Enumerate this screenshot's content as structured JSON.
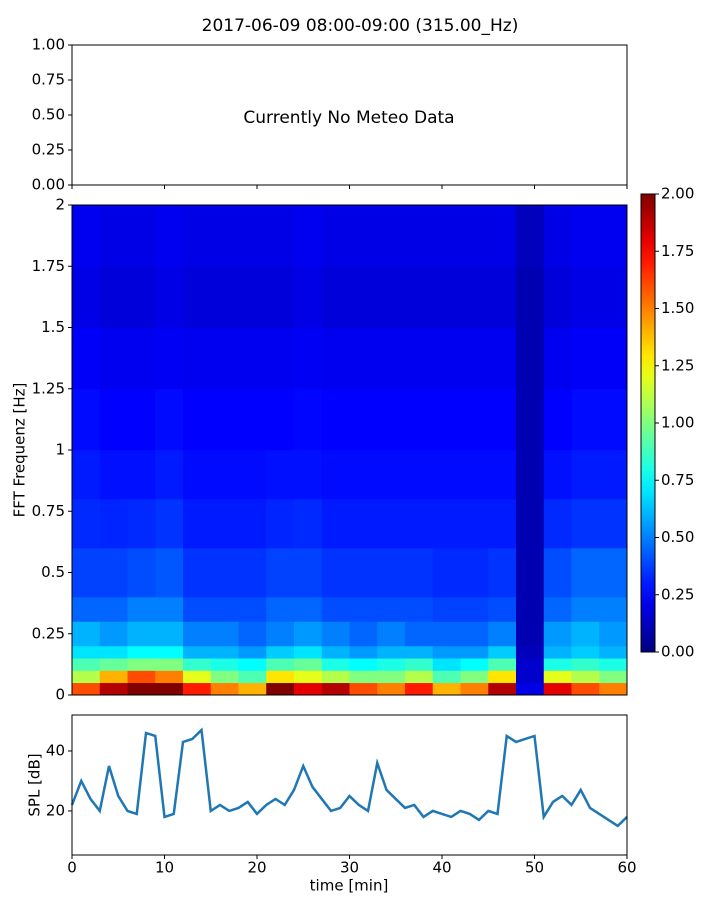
{
  "chart_data": [
    {
      "type": "empty",
      "title": "2017-06-09 08:00-09:00 (315.00_Hz)",
      "annotation": "Currently No Meteo Data",
      "ylim": [
        0,
        1
      ],
      "yticks": [
        {
          "value": 0,
          "label": "0.00"
        },
        {
          "value": 0.25,
          "label": "0.25"
        },
        {
          "value": 0.5,
          "label": "0.50"
        },
        {
          "value": 0.75,
          "label": "0.75"
        },
        {
          "value": 1,
          "label": "1.00"
        }
      ]
    },
    {
      "type": "heatmap",
      "ylabel": "FFT Frequenz [Hz]",
      "colormap": "jet",
      "x_bins": [
        0,
        3,
        6,
        9,
        12,
        15,
        18,
        21,
        24,
        27,
        30,
        33,
        36,
        39,
        42,
        45,
        48,
        51,
        54,
        57,
        60
      ],
      "y_bins": [
        0,
        0.05,
        0.1,
        0.15,
        0.2,
        0.3,
        0.4,
        0.6,
        0.8,
        1,
        1.25,
        1.5,
        1.75,
        2
      ],
      "z": [
        [
          1.6,
          1.9,
          2,
          2,
          1.7,
          1.5,
          1.4,
          2,
          1.8,
          1.9,
          1.6,
          1.5,
          1.7,
          1.4,
          1.5,
          1.9,
          0.2,
          1.8,
          1.6,
          1.5
        ],
        [
          1.1,
          1.4,
          1.6,
          1.5,
          1.2,
          1.0,
          0.9,
          1.3,
          1.2,
          1.1,
          1.0,
          1.0,
          1.1,
          0.9,
          1.0,
          1.3,
          0.15,
          1.2,
          1.1,
          1.0
        ],
        [
          0.9,
          0.95,
          1.0,
          1.0,
          0.85,
          0.8,
          0.75,
          0.9,
          0.95,
          0.8,
          0.75,
          0.8,
          0.85,
          0.7,
          0.75,
          0.9,
          0.15,
          0.8,
          0.85,
          0.8
        ],
        [
          0.7,
          0.7,
          0.75,
          0.75,
          0.6,
          0.6,
          0.55,
          0.65,
          0.7,
          0.6,
          0.55,
          0.6,
          0.6,
          0.55,
          0.55,
          0.65,
          0.12,
          0.6,
          0.65,
          0.6
        ],
        [
          0.6,
          0.55,
          0.6,
          0.6,
          0.5,
          0.5,
          0.45,
          0.5,
          0.55,
          0.5,
          0.45,
          0.5,
          0.45,
          0.45,
          0.45,
          0.5,
          0.1,
          0.55,
          0.6,
          0.55
        ],
        [
          0.45,
          0.45,
          0.5,
          0.5,
          0.4,
          0.4,
          0.4,
          0.45,
          0.45,
          0.4,
          0.4,
          0.4,
          0.4,
          0.38,
          0.38,
          0.4,
          0.1,
          0.45,
          0.5,
          0.5
        ],
        [
          0.38,
          0.38,
          0.4,
          0.42,
          0.35,
          0.35,
          0.35,
          0.38,
          0.38,
          0.35,
          0.35,
          0.35,
          0.35,
          0.33,
          0.33,
          0.35,
          0.1,
          0.4,
          0.45,
          0.45
        ],
        [
          0.33,
          0.32,
          0.33,
          0.35,
          0.3,
          0.3,
          0.3,
          0.32,
          0.33,
          0.3,
          0.3,
          0.3,
          0.3,
          0.3,
          0.3,
          0.3,
          0.1,
          0.33,
          0.35,
          0.35
        ],
        [
          0.3,
          0.28,
          0.28,
          0.3,
          0.27,
          0.27,
          0.27,
          0.28,
          0.28,
          0.27,
          0.27,
          0.27,
          0.27,
          0.27,
          0.27,
          0.27,
          0.1,
          0.28,
          0.3,
          0.3
        ],
        [
          0.27,
          0.25,
          0.25,
          0.27,
          0.25,
          0.25,
          0.25,
          0.25,
          0.26,
          0.25,
          0.25,
          0.25,
          0.25,
          0.25,
          0.25,
          0.25,
          0.1,
          0.25,
          0.27,
          0.27
        ],
        [
          0.24,
          0.22,
          0.22,
          0.23,
          0.22,
          0.22,
          0.22,
          0.22,
          0.23,
          0.22,
          0.22,
          0.22,
          0.22,
          0.22,
          0.22,
          0.22,
          0.1,
          0.22,
          0.24,
          0.24
        ],
        [
          0.2,
          0.18,
          0.18,
          0.2,
          0.18,
          0.18,
          0.18,
          0.18,
          0.2,
          0.18,
          0.18,
          0.18,
          0.18,
          0.18,
          0.18,
          0.18,
          0.1,
          0.18,
          0.2,
          0.2
        ],
        [
          0.22,
          0.2,
          0.2,
          0.22,
          0.2,
          0.2,
          0.2,
          0.2,
          0.22,
          0.2,
          0.2,
          0.2,
          0.2,
          0.2,
          0.2,
          0.2,
          0.12,
          0.2,
          0.22,
          0.22
        ]
      ],
      "ylim": [
        0,
        2
      ],
      "yticks": [
        0,
        0.25,
        0.5,
        0.75,
        1,
        1.25,
        1.5,
        1.75,
        2
      ],
      "clim": [
        0,
        2
      ],
      "cticks": [
        {
          "value": 0,
          "label": "0.00"
        },
        {
          "value": 0.25,
          "label": "0.25"
        },
        {
          "value": 0.5,
          "label": "0.50"
        },
        {
          "value": 0.75,
          "label": "0.75"
        },
        {
          "value": 1,
          "label": "1.00"
        },
        {
          "value": 1.25,
          "label": "1.25"
        },
        {
          "value": 1.5,
          "label": "1.50"
        },
        {
          "value": 1.75,
          "label": "1.75"
        },
        {
          "value": 2,
          "label": "2.00"
        }
      ]
    },
    {
      "type": "line",
      "xlabel": "time [min]",
      "ylabel": "SPL [dB]",
      "color": "#1f77b4",
      "x": [
        0,
        1,
        2,
        3,
        4,
        5,
        6,
        7,
        8,
        9,
        10,
        11,
        12,
        13,
        14,
        15,
        16,
        17,
        18,
        19,
        20,
        21,
        22,
        23,
        24,
        25,
        26,
        27,
        28,
        29,
        30,
        31,
        32,
        33,
        34,
        35,
        36,
        37,
        38,
        39,
        40,
        41,
        42,
        43,
        44,
        45,
        46,
        47,
        48,
        49,
        50,
        51,
        52,
        53,
        54,
        55,
        56,
        57,
        58,
        59,
        60
      ],
      "values": [
        22,
        30,
        24,
        20,
        35,
        25,
        20,
        19,
        46,
        45,
        18,
        19,
        43,
        44,
        47,
        20,
        22,
        20,
        21,
        23,
        19,
        22,
        24,
        22,
        27,
        35,
        28,
        24,
        20,
        21,
        25,
        22,
        20,
        36,
        27,
        24,
        21,
        22,
        18,
        20,
        19,
        18,
        20,
        19,
        17,
        20,
        19,
        45,
        43,
        44,
        45,
        18,
        23,
        25,
        22,
        27,
        21,
        19,
        17,
        15,
        18
      ],
      "xlim": [
        0,
        60
      ],
      "xticks": [
        0,
        10,
        20,
        30,
        40,
        50,
        60
      ],
      "ylim": [
        5.3,
        52
      ],
      "yticks": [
        20,
        40
      ]
    }
  ]
}
